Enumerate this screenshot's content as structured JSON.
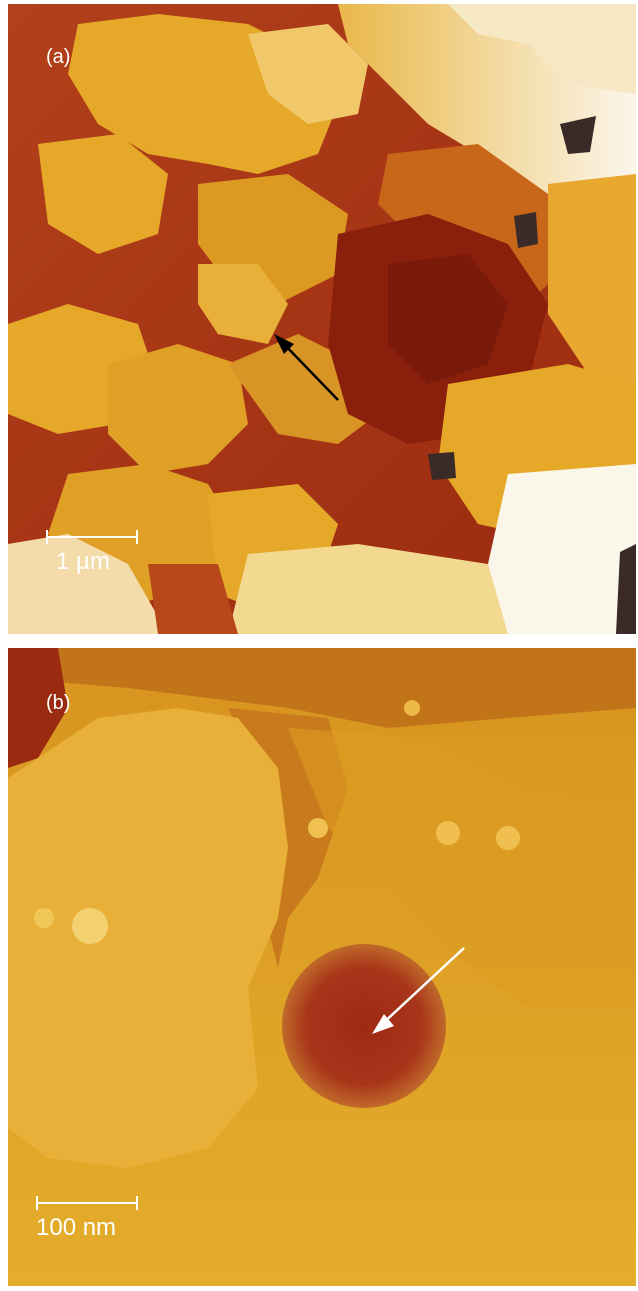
{
  "panel_a": {
    "label": "(a)",
    "scale_label": "1 µm",
    "arrow_color": "#000000"
  },
  "panel_b": {
    "label": "(b)",
    "scale_label": "100 nm",
    "arrow_color": "#ffffff"
  },
  "colors": {
    "dark_red": "#9a2a10",
    "deep_red": "#7a1a0a",
    "orange": "#d88a1c",
    "gold": "#e6a828",
    "light": "#f3d890",
    "white": "#fbf6ea",
    "hole": "#3a2b28"
  }
}
